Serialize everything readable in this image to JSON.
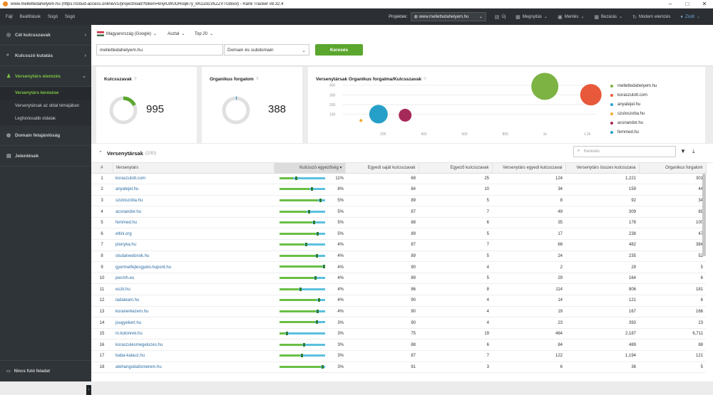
{
  "window": {
    "title": "www.mellettedahelyem.hu (https://cloud-access.online/v1/project/load?token=6nyrLWUDHoq67y_kKDZkLVkZZVTGb5ol) - Rank Tracker v8.32.4",
    "minimize": "–",
    "maximize": "□",
    "close": "✕"
  },
  "menu": [
    "Fájl",
    "Beállítások",
    "Súgó",
    "Súgó"
  ],
  "toolbar": {
    "projects_label": "Projektek:",
    "project_value": "www.mellettedahelyem.hu",
    "tools": [
      {
        "icon": "doc-icon",
        "label": "Új"
      },
      {
        "icon": "file-icon",
        "label": "Megnyitás"
      },
      {
        "icon": "save-icon",
        "label": "Mentés"
      },
      {
        "icon": "lock-icon",
        "label": "Bezárás"
      },
      {
        "icon": "refresh-icon",
        "label": "Modern elemzés"
      }
    ],
    "user": "Zsolt"
  },
  "sidebar": {
    "items": [
      {
        "label": "Cél kulcsszavak",
        "icon": "target-icon"
      },
      {
        "label": "Kulcsszó kutatás",
        "icon": "search-icon"
      },
      {
        "label": "Versenytárs elemzés",
        "icon": "users-icon"
      }
    ],
    "subitems": [
      "Versenytárs keresése",
      "Versenytársak az oldal témájában",
      "Legfontosabb oldalak"
    ],
    "items2": [
      {
        "label": "Domain felajánlóság",
        "icon": "globe-icon"
      },
      {
        "label": "Jelentések",
        "icon": "report-icon"
      }
    ],
    "bottom": "Nincs futó feladat"
  },
  "filters": {
    "country": "Magyarország (Google)",
    "device": "Asztal",
    "top": "Top 20",
    "domain": "mellettedahelyem.hu",
    "scope": "Domain és subdomain",
    "search_button": "Keresés"
  },
  "cards": {
    "keywords": {
      "title": "Kulcsszavak",
      "value": "995",
      "help": "?",
      "ring_fraction": 0.18
    },
    "traffic": {
      "title": "Organikus forgalom",
      "value": "388",
      "help": "?",
      "ring_fraction": 0.01
    },
    "chart_title": "Versenytársak Organikus forgalma/Kulcsszavak"
  },
  "chart_data": {
    "type": "scatter",
    "title": "Versenytársak Organikus forgalma/Kulcsszavak",
    "xticks": [
      "200",
      "400",
      "600",
      "800",
      "1k",
      "1.2k"
    ],
    "yticks": [
      "400",
      "300",
      "200",
      "100"
    ],
    "xlim": [
      0,
      1250
    ],
    "ylim": [
      0,
      420
    ],
    "series": [
      {
        "name": "mellettedahelyem.hu",
        "color": "#7cb342",
        "x": 995,
        "y": 388,
        "r": 19
      },
      {
        "name": "koraszulott.com",
        "color": "#e8583b",
        "x": 1221,
        "y": 301,
        "r": 15
      },
      {
        "name": "anyatejel.hu",
        "color": "#2e9bd6",
        "x": 159,
        "y": 44,
        "r": 0
      },
      {
        "name": "szuloszoba.hu",
        "color": "#f0a830",
        "x": 92,
        "y": 34,
        "r": 2
      },
      {
        "name": "acsnandor.hu",
        "color": "#a52a5a",
        "x": 309,
        "y": 89,
        "r": 9
      },
      {
        "name": "femmed.hu",
        "color": "#26a0c8",
        "x": 178,
        "y": 100,
        "r": 13
      }
    ]
  },
  "table": {
    "title": "Versenytársak",
    "count": "(100)",
    "search_placeholder": "Keresés",
    "columns": [
      "#",
      "Versenytárs",
      "Kulcsszó egyezőség ▾",
      "Egyedi saját kulcsszavak",
      "Egyező kulcsszavak",
      "Versenytárs egyedi kulcsszavai",
      "Versenytárs összes kulcsszava",
      "Organikus forgalom"
    ],
    "rows": [
      {
        "n": "1",
        "domain": "koraszulott.com",
        "pct": "11%",
        "own": "69",
        "common": "25",
        "comp_unique": "124",
        "comp_total": "1,221",
        "traffic": "301",
        "fill": 0.3,
        "mark": 0.35
      },
      {
        "n": "2",
        "domain": "anyatejel.hu",
        "pct": "8%",
        "own": "84",
        "common": "10",
        "comp_unique": "34",
        "comp_total": "159",
        "traffic": "44",
        "fill": 0.65,
        "mark": 0.68
      },
      {
        "n": "3",
        "domain": "szuloszoba.hu",
        "pct": "5%",
        "own": "89",
        "common": "5",
        "comp_unique": "8",
        "comp_total": "92",
        "traffic": "34",
        "fill": 0.85,
        "mark": 0.87
      },
      {
        "n": "4",
        "domain": "acsnandor.hu",
        "pct": "5%",
        "own": "87",
        "common": "7",
        "comp_unique": "49",
        "comp_total": "309",
        "traffic": "89",
        "fill": 0.6,
        "mark": 0.62
      },
      {
        "n": "5",
        "domain": "femmed.hu",
        "pct": "5%",
        "own": "88",
        "common": "6",
        "comp_unique": "35",
        "comp_total": "178",
        "traffic": "100",
        "fill": 0.72,
        "mark": 0.74
      },
      {
        "n": "6",
        "domain": "eltini.org",
        "pct": "5%",
        "own": "89",
        "common": "5",
        "comp_unique": "17",
        "comp_total": "238",
        "traffic": "47",
        "fill": 0.8,
        "mark": 0.82
      },
      {
        "n": "7",
        "domain": "pionyka.hu",
        "pct": "4%",
        "own": "87",
        "common": "7",
        "comp_unique": "68",
        "comp_total": "482",
        "traffic": "384",
        "fill": 0.55,
        "mark": 0.57
      },
      {
        "n": "8",
        "domain": "otudaivedonok.hu",
        "pct": "4%",
        "own": "89",
        "common": "5",
        "comp_unique": "24",
        "comp_total": "235",
        "traffic": "52",
        "fill": 0.78,
        "mark": 0.8
      },
      {
        "n": "9",
        "domain": "gyermelfejlesgyelo.hupont.hu",
        "pct": "4%",
        "own": "90",
        "common": "4",
        "comp_unique": "2",
        "comp_total": "29",
        "traffic": "5",
        "fill": 0.93,
        "mark": 0.95
      },
      {
        "n": "10",
        "domain": "pecmh.eu",
        "pct": "4%",
        "own": "89",
        "common": "5",
        "comp_unique": "29",
        "comp_total": "164",
        "traffic": "6",
        "fill": 0.75,
        "mark": 0.77
      },
      {
        "n": "11",
        "domain": "eszk.hu",
        "pct": "4%",
        "own": "86",
        "common": "8",
        "comp_unique": "114",
        "comp_total": "806",
        "traffic": "181",
        "fill": 0.42,
        "mark": 0.44
      },
      {
        "n": "12",
        "domain": "tadateam.hu",
        "pct": "4%",
        "own": "90",
        "common": "4",
        "comp_unique": "14",
        "comp_total": "121",
        "traffic": "6",
        "fill": 0.82,
        "mark": 0.84
      },
      {
        "n": "13",
        "domain": "koranerkezem.hu",
        "pct": "4%",
        "own": "90",
        "common": "4",
        "comp_unique": "19",
        "comp_total": "167",
        "traffic": "166",
        "fill": 0.8,
        "mark": 0.82
      },
      {
        "n": "14",
        "domain": "jougyekert.hu",
        "pct": "3%",
        "own": "90",
        "common": "4",
        "comp_unique": "23",
        "comp_total": "393",
        "traffic": "23",
        "fill": 0.78,
        "mark": 0.8
      },
      {
        "n": "15",
        "domain": "m.kolonnet.hu",
        "pct": "3%",
        "own": "75",
        "common": "19",
        "comp_unique": "464",
        "comp_total": "2,187",
        "traffic": "6,711",
        "fill": 0.12,
        "mark": 0.14
      },
      {
        "n": "16",
        "domain": "koraszulesmegelozes.hu",
        "pct": "3%",
        "own": "88",
        "common": "6",
        "comp_unique": "84",
        "comp_total": "489",
        "traffic": "88",
        "fill": 0.5,
        "mark": 0.52
      },
      {
        "n": "17",
        "domain": "baba-kalauz.hu",
        "pct": "3%",
        "own": "87",
        "common": "7",
        "comp_unique": "122",
        "comp_total": "1,194",
        "traffic": "121",
        "fill": 0.45,
        "mark": 0.47
      },
      {
        "n": "18",
        "domain": "atehangodatismerem.hu",
        "pct": "3%",
        "own": "91",
        "common": "3",
        "comp_unique": "6",
        "comp_total": "36",
        "traffic": "5",
        "fill": 0.9,
        "mark": 0.92
      }
    ]
  }
}
